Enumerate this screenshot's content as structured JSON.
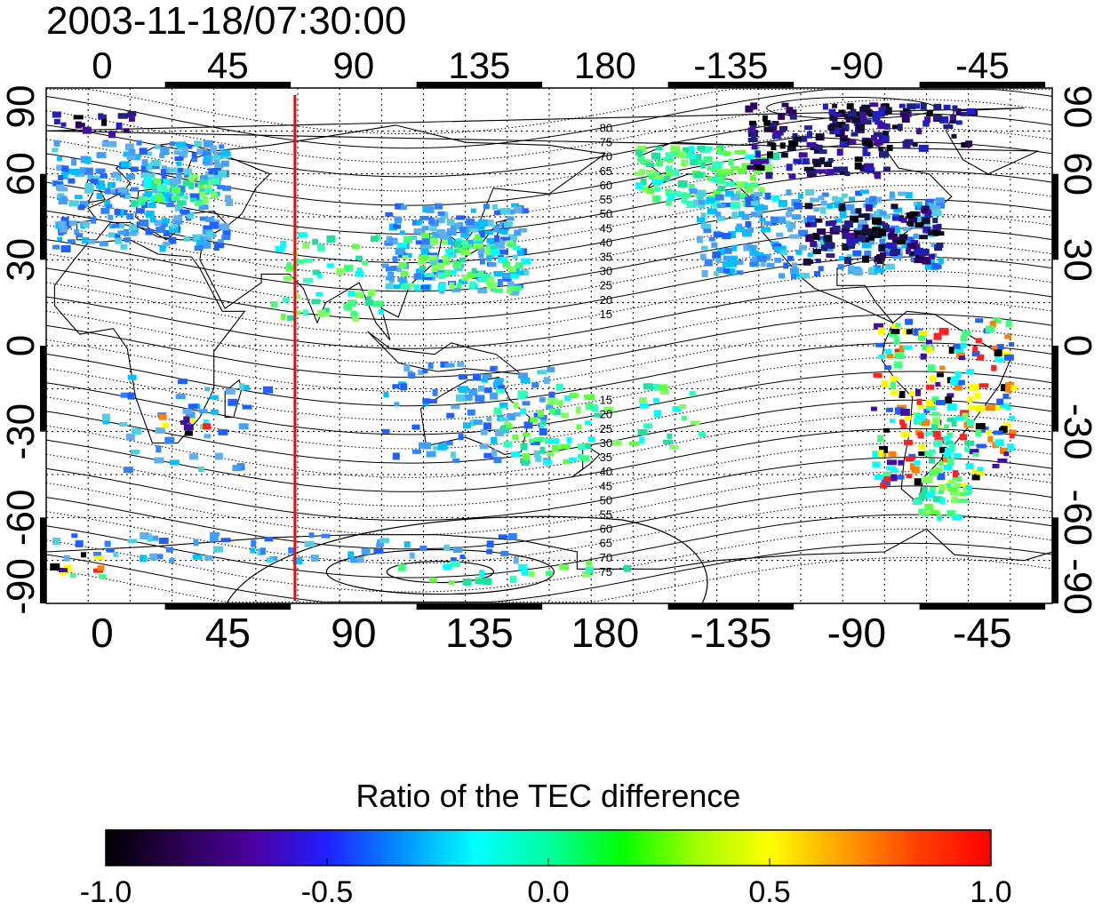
{
  "title": "2003-11-18/07:30:00",
  "map": {
    "lon_ticks": [
      "0",
      "45",
      "90",
      "135",
      "180",
      "-135",
      "-90",
      "-45"
    ],
    "lat_ticks_left": [
      "90",
      "60",
      "30",
      "0",
      "-30",
      "-60",
      "-90"
    ],
    "lat_ticks_right": [
      "90",
      "60",
      "30",
      "0",
      "-30",
      "-60",
      "-90"
    ],
    "lon_range": [
      -20,
      340
    ],
    "lat_range": [
      -90,
      90
    ],
    "grid": "dotted",
    "meridian_line_lon": 69,
    "meridian_line_color": "#dd1111",
    "contour_labels_north": [
      "80",
      "75",
      "70",
      "65",
      "60",
      "55",
      "50",
      "45",
      "40",
      "35",
      "30",
      "25",
      "20",
      "15"
    ],
    "contour_labels_south": [
      "15",
      "20",
      "25",
      "30",
      "35",
      "40",
      "45",
      "50",
      "55",
      "60",
      "65",
      "70",
      "75"
    ]
  },
  "colorbar": {
    "title": "Ratio of the TEC difference",
    "ticks": [
      "-1.0",
      "-0.5",
      "0.0",
      "0.5",
      "1.0"
    ],
    "range": [
      -1.0,
      1.0
    ],
    "colormap": [
      "#000000",
      "#2a0050",
      "#4b00a0",
      "#2020ff",
      "#0090ff",
      "#00ffff",
      "#00ffa0",
      "#00ff00",
      "#a0ff00",
      "#ffff00",
      "#ffa000",
      "#ff4000",
      "#ff0000"
    ]
  }
}
